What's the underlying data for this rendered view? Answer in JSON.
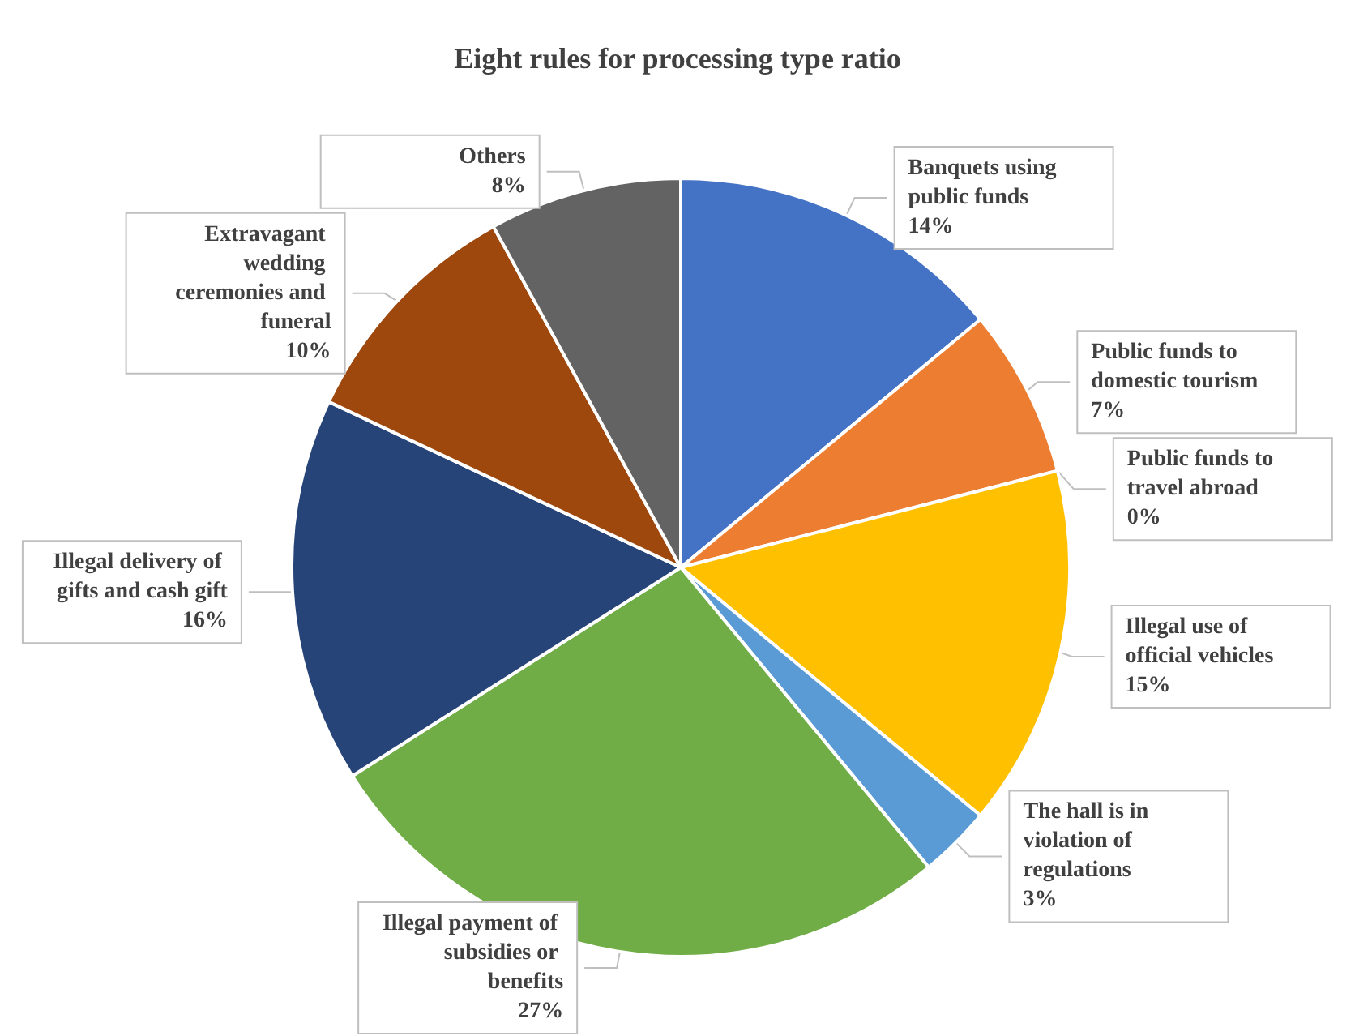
{
  "chart_data": {
    "type": "pie",
    "title": "Eight rules for processing type ratio",
    "categories": [
      "Banquets using public funds",
      "Public funds to domestic tourism",
      "Public funds to travel abroad",
      "Illegal use of official vehicles",
      "The hall is in violation of regulations",
      "Illegal payment of subsidies or benefits",
      "Illegal delivery of gifts and cash gift",
      "Extravagant wedding ceremonies and funeral",
      "Others"
    ],
    "values": [
      14,
      7,
      0,
      15,
      3,
      27,
      16,
      10,
      8
    ],
    "value_labels": [
      "14%",
      "7%",
      "0%",
      "15%",
      "3%",
      "27%",
      "16%",
      "10%",
      "8%"
    ],
    "colors": [
      "#4472c4",
      "#ed7d31",
      "#a5a5a5",
      "#ffc000",
      "#5b9bd5",
      "#70ad47",
      "#264478",
      "#9e480e",
      "#636363"
    ]
  }
}
